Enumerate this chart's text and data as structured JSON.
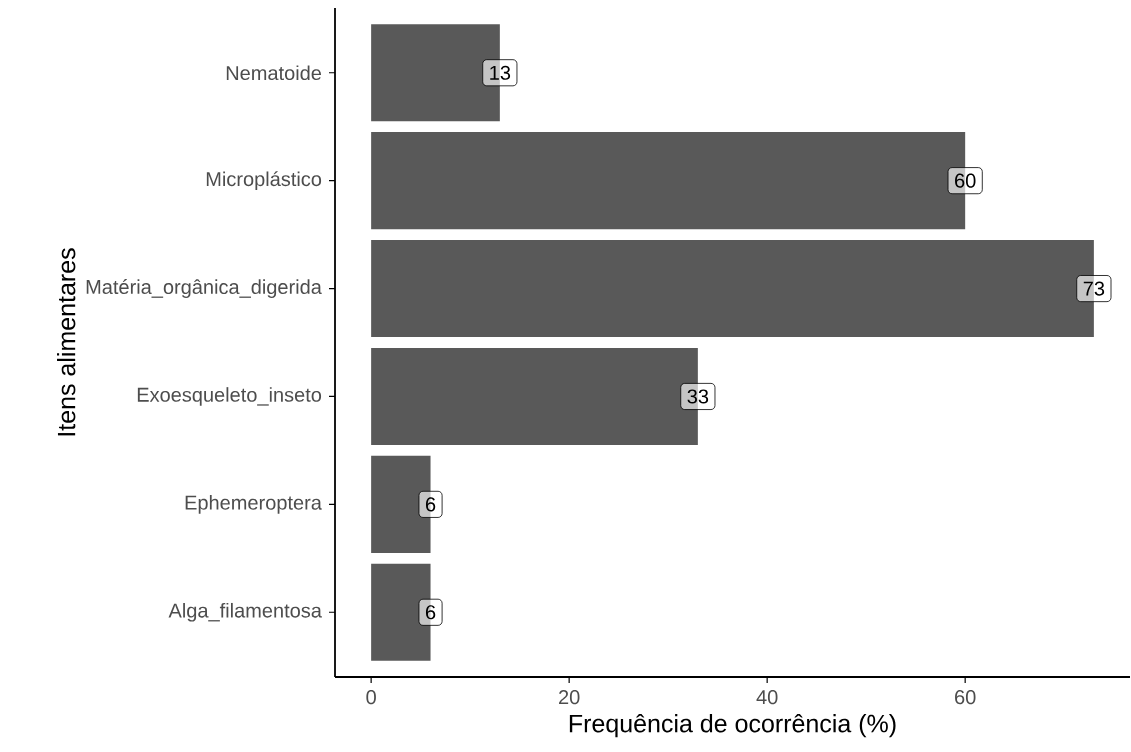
{
  "chart_data": {
    "type": "bar",
    "orientation": "horizontal",
    "xlabel": "Frequência de ocorrência (%)",
    "ylabel": "Itens alimentares",
    "categories": [
      "Nematoide",
      "Microplástico",
      "Matéria_orgânica_digerida",
      "Exoesqueleto_inseto",
      "Ephemeroptera",
      "Alga_filamentosa"
    ],
    "values": [
      13,
      60,
      73,
      33,
      6,
      6
    ],
    "color": "#595959",
    "data_labels": true,
    "xlim": [
      -3.65,
      76.65
    ],
    "xticks": [
      0,
      20,
      40,
      60
    ],
    "grid": false
  }
}
